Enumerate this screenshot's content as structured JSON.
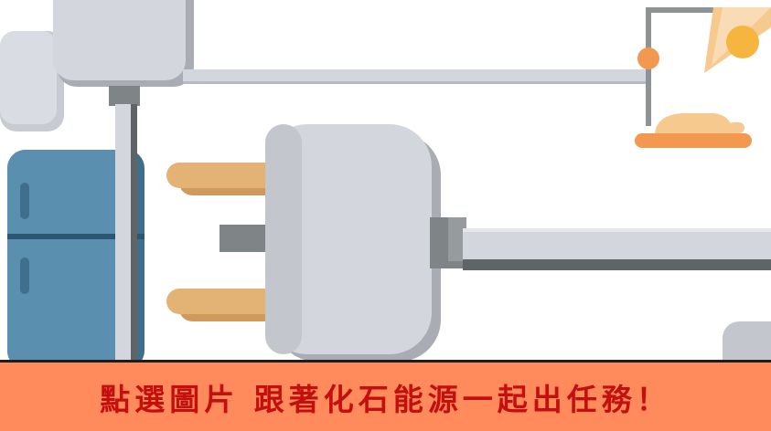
{
  "banner": {
    "text": "點選圖片 跟著化石能源一起出任務！"
  },
  "colors": {
    "banner_bg": "#ff8a5c",
    "banner_text": "#c40f0f",
    "plug_body": "#d3d6dd",
    "plug_shadow": "#a9acb3",
    "prong": "#e3b376",
    "fridge": "#5b8fb0",
    "lamp_accent": "#f3984f"
  },
  "illustration": {
    "objects": [
      "plug-icon",
      "refrigerator-icon",
      "lamp-icon",
      "power-cable"
    ]
  }
}
